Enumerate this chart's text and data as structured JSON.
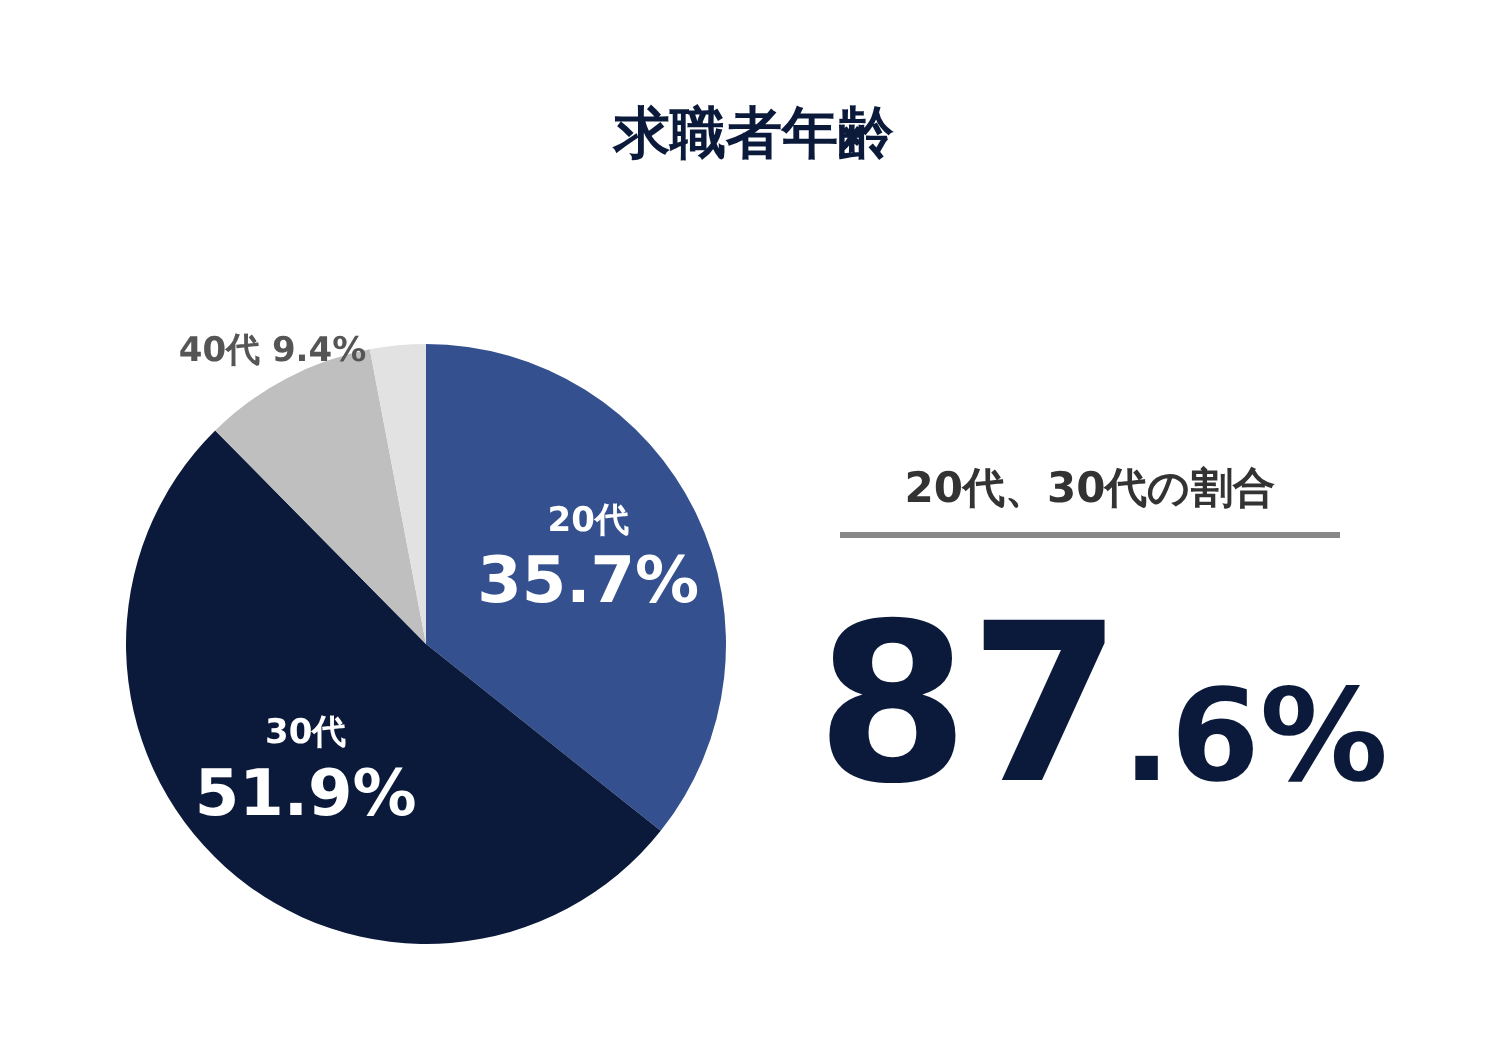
{
  "chart_data": {
    "type": "pie",
    "title": "求職者年齢",
    "categories": [
      "20代",
      "30代",
      "40代",
      null
    ],
    "values": [
      35.7,
      51.9,
      9.4,
      3.0
    ],
    "colors": [
      "#34508f",
      "#0b1a3a",
      "#bfbfbf",
      "#e2e2e2"
    ],
    "value_labels": [
      "35.7%",
      "51.9%",
      "9.4%",
      null
    ],
    "annotations": [
      "20代、30代の割合",
      "87.6%"
    ]
  }
}
